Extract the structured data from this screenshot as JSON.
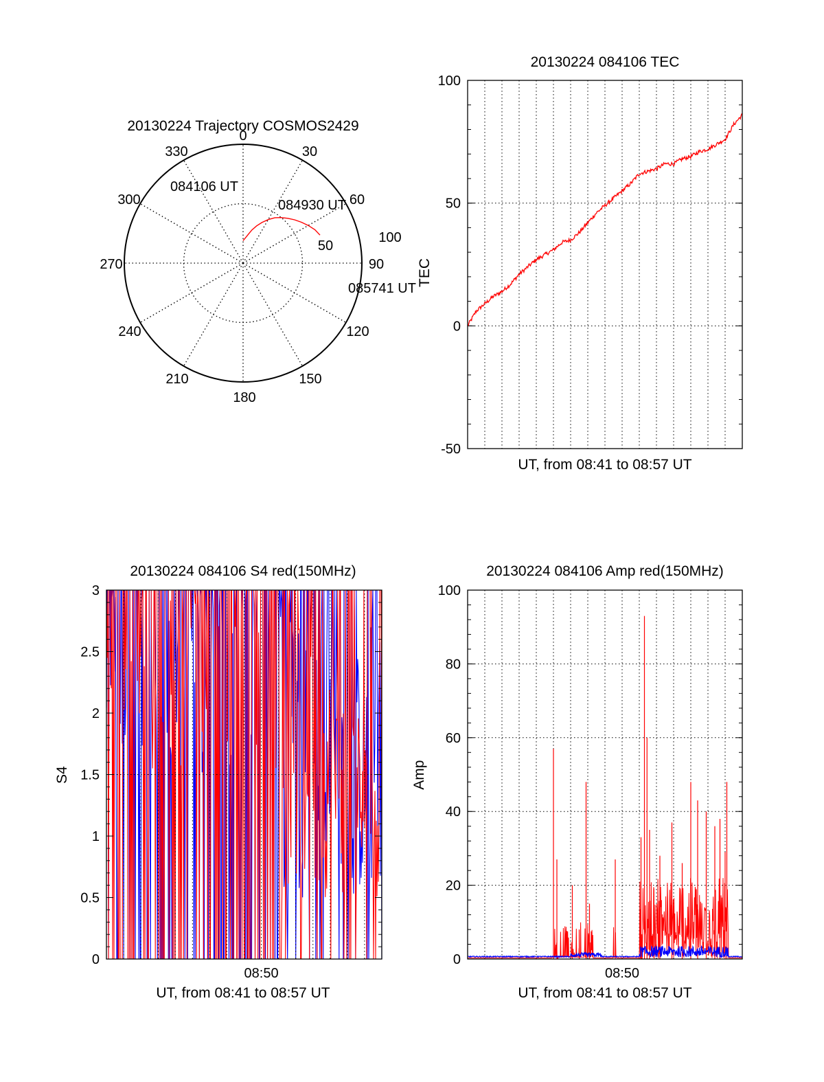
{
  "colors": {
    "red": "#ff0000",
    "blue": "#0000ff",
    "axis": "#000000",
    "grid": "#000000"
  },
  "chart_data": [
    {
      "type": "polar-trajectory",
      "title": "20130224 Trajectory COSMOS2429",
      "azimuth_labels": [
        "0",
        "30",
        "60",
        "90",
        "120",
        "150",
        "180",
        "210",
        "240",
        "270",
        "300",
        "330"
      ],
      "radial_labels": [
        "50",
        "100"
      ],
      "grid": true,
      "points": [
        {
          "label": "084106 UT",
          "azimuth": 0,
          "radius": 73
        },
        {
          "label": "084930 UT",
          "azimuth": 25,
          "radius": 58
        },
        {
          "label": "085741 UT",
          "azimuth": 70,
          "radius": 28
        }
      ],
      "path": [
        [
          0,
          73
        ],
        [
          5,
          71
        ],
        [
          10,
          68
        ],
        [
          15,
          64
        ],
        [
          20,
          60
        ],
        [
          25,
          56
        ],
        [
          30,
          52
        ],
        [
          35,
          48
        ],
        [
          40,
          45
        ],
        [
          45,
          42
        ],
        [
          50,
          39
        ],
        [
          55,
          36
        ],
        [
          60,
          33
        ],
        [
          65,
          30
        ],
        [
          70,
          28
        ]
      ]
    },
    {
      "type": "line",
      "title": "20130224 084106 TEC",
      "xlabel": "UT, from 08:41 to 08:57 UT",
      "ylabel": "TEC",
      "xlim": [
        0,
        16
      ],
      "ylim": [
        -50,
        100
      ],
      "yticks": [
        "-50",
        "0",
        "50",
        "100"
      ],
      "grid": true,
      "series": [
        {
          "color": "#ff0000",
          "x": [
            0,
            0.5,
            1,
            1.5,
            2,
            2.5,
            3,
            3.5,
            4,
            4.5,
            5,
            5.5,
            6,
            6.5,
            7,
            7.5,
            8,
            8.5,
            9,
            9.5,
            10,
            10.5,
            11,
            11.5,
            12,
            12.5,
            13,
            13.5,
            14,
            14.5,
            15,
            15.5,
            16
          ],
          "values": [
            0,
            6,
            9,
            12,
            14,
            17,
            21,
            24,
            27,
            29,
            31,
            34,
            35,
            38,
            42,
            46,
            49,
            52,
            55,
            58,
            62,
            63,
            64,
            66,
            66,
            68,
            69,
            71,
            72,
            74,
            76,
            82,
            86
          ]
        }
      ]
    },
    {
      "type": "line",
      "title": "20130224 084106 S4 red(150MHz)",
      "xlabel": "UT, from 08:41 to 08:57 UT",
      "ylabel": "S4",
      "xlim": [
        0,
        16
      ],
      "ylim": [
        0,
        3
      ],
      "yticks": [
        "0",
        "0.5",
        "1",
        "1.5",
        "2",
        "2.5",
        "3"
      ],
      "xticks": [
        {
          "x": 9,
          "label": "08:50"
        }
      ],
      "grid": true,
      "series": [
        {
          "color": "#0000ff",
          "profile": [
            [
              0,
              3
            ],
            [
              10,
              2.6
            ],
            [
              12,
              2.3
            ],
            [
              14,
              2.2
            ],
            [
              15,
              1.9
            ],
            [
              16,
              3
            ]
          ]
        },
        {
          "color": "#ff0000",
          "profile": [
            [
              0,
              3
            ],
            [
              10,
              2.6
            ],
            [
              12,
              2.0
            ],
            [
              14,
              1.8
            ],
            [
              15,
              1.5
            ],
            [
              16,
              1.7
            ]
          ]
        }
      ]
    },
    {
      "type": "line",
      "title": "20130224 084106 Amp red(150MHz)",
      "xlabel": "UT, from 08:41 to 08:57 UT",
      "ylabel": "Amp",
      "xlim": [
        0,
        16
      ],
      "ylim": [
        0,
        100
      ],
      "yticks": [
        "0",
        "20",
        "40",
        "60",
        "80",
        "100"
      ],
      "xticks": [
        {
          "x": 9,
          "label": "08:50"
        }
      ],
      "grid": true,
      "series": [
        {
          "color": "#ff0000",
          "peaks": [
            [
              5.0,
              57
            ],
            [
              5.2,
              27
            ],
            [
              6.1,
              20
            ],
            [
              6.5,
              8
            ],
            [
              6.9,
              48
            ],
            [
              7.1,
              15
            ],
            [
              8.6,
              27
            ],
            [
              10.1,
              33
            ],
            [
              10.3,
              93
            ],
            [
              10.45,
              60
            ],
            [
              10.6,
              35
            ],
            [
              11.2,
              28
            ],
            [
              11.9,
              37
            ],
            [
              12.5,
              26
            ],
            [
              13.0,
              48
            ],
            [
              13.4,
              43
            ],
            [
              13.9,
              40
            ],
            [
              14.4,
              36
            ],
            [
              14.7,
              38
            ],
            [
              15.0,
              29
            ],
            [
              15.1,
              48
            ]
          ]
        },
        {
          "color": "#0000ff",
          "baseline": 0.5,
          "bump": 3
        }
      ]
    }
  ]
}
